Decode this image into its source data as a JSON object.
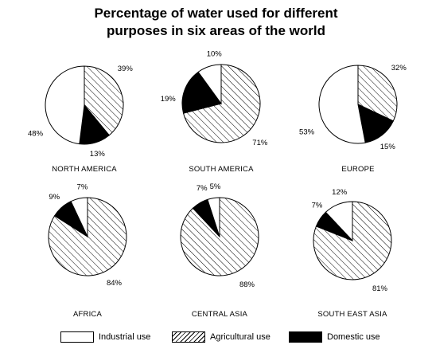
{
  "title_line1": "Percentage of water used for different",
  "title_line2": "purposes in six areas of the world",
  "legend": {
    "industrial": "Industrial use",
    "agricultural": "Agricultural use",
    "domestic": "Domestic use"
  },
  "chart_data": [
    {
      "type": "pie",
      "region": "NORTH AMERICA",
      "slices": [
        {
          "name": "Industrial use",
          "value": 48,
          "label": "48%"
        },
        {
          "name": "Agricultural use",
          "value": 39,
          "label": "39%"
        },
        {
          "name": "Domestic use",
          "value": 13,
          "label": "13%"
        }
      ]
    },
    {
      "type": "pie",
      "region": "SOUTH AMERICA",
      "slices": [
        {
          "name": "Industrial use",
          "value": 10,
          "label": "10%"
        },
        {
          "name": "Agricultural use",
          "value": 71,
          "label": "71%"
        },
        {
          "name": "Domestic use",
          "value": 19,
          "label": "19%"
        }
      ]
    },
    {
      "type": "pie",
      "region": "EUROPE",
      "slices": [
        {
          "name": "Industrial use",
          "value": 53,
          "label": "53%"
        },
        {
          "name": "Agricultural use",
          "value": 32,
          "label": "32%"
        },
        {
          "name": "Domestic use",
          "value": 15,
          "label": "15%"
        }
      ]
    },
    {
      "type": "pie",
      "region": "AFRICA",
      "slices": [
        {
          "name": "Industrial use",
          "value": 7,
          "label": "7%"
        },
        {
          "name": "Agricultural use",
          "value": 84,
          "label": "84%"
        },
        {
          "name": "Domestic use",
          "value": 9,
          "label": "9%"
        }
      ]
    },
    {
      "type": "pie",
      "region": "CENTRAL ASIA",
      "slices": [
        {
          "name": "Industrial use",
          "value": 5,
          "label": "5%"
        },
        {
          "name": "Agricultural use",
          "value": 88,
          "label": "88%"
        },
        {
          "name": "Domestic use",
          "value": 7,
          "label": "7%"
        }
      ]
    },
    {
      "type": "pie",
      "region": "SOUTH EAST ASIA",
      "slices": [
        {
          "name": "Industrial use",
          "value": 12,
          "label": "12%"
        },
        {
          "name": "Agricultural use",
          "value": 81,
          "label": "81%"
        },
        {
          "name": "Domestic use",
          "value": 7,
          "label": "7%"
        }
      ]
    }
  ]
}
